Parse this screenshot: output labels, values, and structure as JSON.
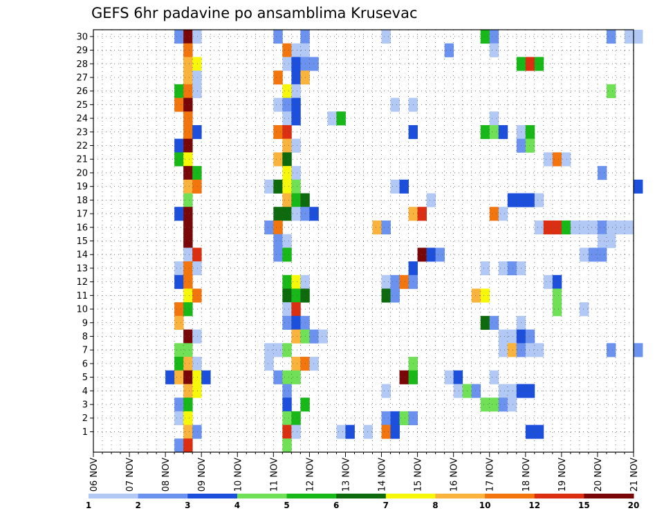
{
  "chart_data": {
    "type": "heatmap",
    "title": "GEFS 6hr padavine po ansamblima Krusevac",
    "xlabel": "",
    "ylabel": "",
    "x_tick_labels": [
      "06 NOV",
      "07 NOV",
      "08 NOV",
      "09 NOV",
      "10 NOV",
      "11 NOV",
      "12 NOV",
      "13 NOV",
      "14 NOV",
      "15 NOV",
      "16 NOV",
      "17 NOV",
      "18 NOV",
      "19 NOV",
      "20 NOV",
      "21 NOV"
    ],
    "x_range_days": [
      0,
      15
    ],
    "y_tick_labels": [
      "1",
      "2",
      "3",
      "4",
      "5",
      "6",
      "7",
      "8",
      "9",
      "10",
      "11",
      "12",
      "13",
      "14",
      "15",
      "16",
      "17",
      "18",
      "19",
      "20",
      "21",
      "22",
      "23",
      "24",
      "25",
      "26",
      "27",
      "28",
      "29",
      "30"
    ],
    "y_range": [
      0,
      30
    ],
    "grid": true,
    "colorbar": {
      "placement": "bottom",
      "labels": [
        "1",
        "2",
        "3",
        "4",
        "5",
        "6",
        "7",
        "8",
        "10",
        "12",
        "15",
        "20"
      ],
      "colors": [
        "#b3c9f5",
        "#6b92ee",
        "#1c4fdb",
        "#70e157",
        "#18b818",
        "#0d6b0d",
        "#f7f709",
        "#fab33c",
        "#f2750d",
        "#dc2e10",
        "#7a0707"
      ]
    },
    "cells_format": "[member, x_day_offset_from_06_NOV, color_class_index]",
    "cells": [
      [
        30,
        2.25,
        1
      ],
      [
        30,
        2.5,
        10
      ],
      [
        30,
        2.75,
        0
      ],
      [
        30,
        5,
        1
      ],
      [
        30,
        5.75,
        1
      ],
      [
        30,
        8,
        0
      ],
      [
        30,
        10.75,
        4
      ],
      [
        30,
        11,
        1
      ],
      [
        30,
        14.25,
        1
      ],
      [
        30,
        14.75,
        0
      ],
      [
        30,
        15,
        0
      ],
      [
        29,
        2.5,
        8
      ],
      [
        29,
        5.25,
        8
      ],
      [
        29,
        5.5,
        0
      ],
      [
        29,
        5.75,
        0
      ],
      [
        29,
        9.75,
        1
      ],
      [
        29,
        11,
        0
      ],
      [
        28,
        2.5,
        7
      ],
      [
        28,
        2.75,
        6
      ],
      [
        28,
        5.25,
        0
      ],
      [
        28,
        5.5,
        2
      ],
      [
        28,
        5.75,
        1
      ],
      [
        28,
        6,
        1
      ],
      [
        28,
        11.75,
        4
      ],
      [
        28,
        12,
        9
      ],
      [
        28,
        12.25,
        4
      ],
      [
        27,
        2.5,
        7
      ],
      [
        27,
        2.75,
        0
      ],
      [
        27,
        5,
        8
      ],
      [
        27,
        5.5,
        2
      ],
      [
        27,
        5.75,
        7
      ],
      [
        26,
        2.25,
        4
      ],
      [
        26,
        2.5,
        8
      ],
      [
        26,
        2.75,
        0
      ],
      [
        26,
        5.25,
        6
      ],
      [
        26,
        5.5,
        0
      ],
      [
        26,
        14.25,
        3
      ],
      [
        25,
        2.25,
        8
      ],
      [
        25,
        2.5,
        10
      ],
      [
        25,
        5,
        0
      ],
      [
        25,
        5.25,
        1
      ],
      [
        25,
        5.5,
        2
      ],
      [
        25,
        8.25,
        0
      ],
      [
        25,
        8.75,
        0
      ],
      [
        24,
        2.5,
        8
      ],
      [
        24,
        5.25,
        0
      ],
      [
        24,
        5.5,
        2
      ],
      [
        24,
        6.5,
        0
      ],
      [
        24,
        6.75,
        4
      ],
      [
        24,
        11,
        0
      ],
      [
        23,
        2.5,
        8
      ],
      [
        23,
        2.75,
        2
      ],
      [
        23,
        5,
        8
      ],
      [
        23,
        5.25,
        9
      ],
      [
        23,
        8.75,
        2
      ],
      [
        23,
        10.75,
        4
      ],
      [
        23,
        11,
        3
      ],
      [
        23,
        11.25,
        2
      ],
      [
        23,
        11.75,
        0
      ],
      [
        23,
        12,
        4
      ],
      [
        22,
        2.25,
        2
      ],
      [
        22,
        2.5,
        10
      ],
      [
        22,
        5.25,
        7
      ],
      [
        22,
        5.5,
        0
      ],
      [
        22,
        11.75,
        1
      ],
      [
        22,
        12,
        3
      ],
      [
        21,
        2.25,
        4
      ],
      [
        21,
        2.5,
        6
      ],
      [
        21,
        5,
        7
      ],
      [
        21,
        5.25,
        5
      ],
      [
        21,
        12.5,
        0
      ],
      [
        21,
        12.75,
        8
      ],
      [
        21,
        13,
        0
      ],
      [
        20,
        2.5,
        10
      ],
      [
        20,
        2.75,
        4
      ],
      [
        20,
        5.25,
        6
      ],
      [
        20,
        5.5,
        0
      ],
      [
        20,
        14,
        1
      ],
      [
        19,
        2.5,
        7
      ],
      [
        19,
        2.75,
        8
      ],
      [
        19,
        4.75,
        0
      ],
      [
        19,
        5,
        5
      ],
      [
        19,
        5.25,
        6
      ],
      [
        19,
        5.5,
        3
      ],
      [
        19,
        8.25,
        0
      ],
      [
        19,
        8.5,
        2
      ],
      [
        19,
        15,
        2
      ],
      [
        18,
        2.5,
        3
      ],
      [
        18,
        5.25,
        7
      ],
      [
        18,
        5.5,
        4
      ],
      [
        18,
        5.75,
        5
      ],
      [
        18,
        9.25,
        0
      ],
      [
        18,
        11.5,
        2
      ],
      [
        18,
        11.75,
        2
      ],
      [
        18,
        12,
        2
      ],
      [
        18,
        12.25,
        0
      ],
      [
        17,
        2.25,
        2
      ],
      [
        17,
        2.5,
        10
      ],
      [
        17,
        5,
        5
      ],
      [
        17,
        5.25,
        5
      ],
      [
        17,
        5.5,
        0
      ],
      [
        17,
        5.75,
        1
      ],
      [
        17,
        6,
        2
      ],
      [
        17,
        8.75,
        7
      ],
      [
        17,
        9,
        9
      ],
      [
        17,
        11,
        8
      ],
      [
        17,
        11.25,
        0
      ],
      [
        16,
        2.5,
        10
      ],
      [
        16,
        4.75,
        1
      ],
      [
        16,
        5,
        8
      ],
      [
        16,
        7.75,
        7
      ],
      [
        16,
        8,
        1
      ],
      [
        16,
        12.25,
        0
      ],
      [
        16,
        12.5,
        9
      ],
      [
        16,
        12.75,
        9
      ],
      [
        16,
        13,
        4
      ],
      [
        16,
        13.25,
        0
      ],
      [
        16,
        13.5,
        0
      ],
      [
        16,
        13.75,
        0
      ],
      [
        16,
        14,
        1
      ],
      [
        16,
        14.25,
        0
      ],
      [
        16,
        14.5,
        0
      ],
      [
        16,
        14.75,
        0
      ],
      [
        15,
        2.5,
        10
      ],
      [
        15,
        5,
        1
      ],
      [
        15,
        5.25,
        0
      ],
      [
        15,
        14,
        0
      ],
      [
        15,
        14.25,
        0
      ],
      [
        14,
        2.5,
        0
      ],
      [
        14,
        2.75,
        9
      ],
      [
        14,
        5,
        1
      ],
      [
        14,
        5.25,
        4
      ],
      [
        14,
        9,
        10
      ],
      [
        14,
        9.25,
        2
      ],
      [
        14,
        9.5,
        1
      ],
      [
        14,
        13.5,
        0
      ],
      [
        14,
        13.75,
        1
      ],
      [
        14,
        14,
        1
      ],
      [
        13,
        2.25,
        0
      ],
      [
        13,
        2.5,
        8
      ],
      [
        13,
        2.75,
        0
      ],
      [
        13,
        8.75,
        2
      ],
      [
        13,
        10.75,
        0
      ],
      [
        13,
        11.25,
        0
      ],
      [
        13,
        11.5,
        1
      ],
      [
        13,
        11.75,
        0
      ],
      [
        12,
        2.25,
        2
      ],
      [
        12,
        2.5,
        8
      ],
      [
        12,
        5.25,
        4
      ],
      [
        12,
        5.5,
        6
      ],
      [
        12,
        5.75,
        0
      ],
      [
        12,
        8,
        0
      ],
      [
        12,
        8.25,
        1
      ],
      [
        12,
        8.5,
        8
      ],
      [
        12,
        8.75,
        1
      ],
      [
        12,
        12.5,
        0
      ],
      [
        12,
        12.75,
        2
      ],
      [
        11,
        2.5,
        6
      ],
      [
        11,
        2.75,
        8
      ],
      [
        11,
        5.25,
        5
      ],
      [
        11,
        5.5,
        4
      ],
      [
        11,
        5.75,
        5
      ],
      [
        11,
        8,
        5
      ],
      [
        11,
        8.25,
        1
      ],
      [
        11,
        10.5,
        7
      ],
      [
        11,
        10.75,
        6
      ],
      [
        11,
        12.75,
        3
      ],
      [
        10,
        2.25,
        8
      ],
      [
        10,
        2.5,
        4
      ],
      [
        10,
        5.25,
        0
      ],
      [
        10,
        5.5,
        9
      ],
      [
        10,
        12.75,
        3
      ],
      [
        10,
        13.5,
        0
      ],
      [
        9,
        2.25,
        7
      ],
      [
        9,
        5.25,
        1
      ],
      [
        9,
        5.5,
        2
      ],
      [
        9,
        5.75,
        1
      ],
      [
        9,
        10.75,
        5
      ],
      [
        9,
        11,
        1
      ],
      [
        9,
        11.75,
        0
      ],
      [
        8,
        2.5,
        10
      ],
      [
        8,
        2.75,
        0
      ],
      [
        8,
        5.5,
        7
      ],
      [
        8,
        5.75,
        3
      ],
      [
        8,
        6,
        1
      ],
      [
        8,
        6.25,
        0
      ],
      [
        8,
        11.25,
        0
      ],
      [
        8,
        11.5,
        0
      ],
      [
        8,
        11.75,
        2
      ],
      [
        8,
        12,
        1
      ],
      [
        7,
        2.25,
        3
      ],
      [
        7,
        2.5,
        3
      ],
      [
        7,
        4.75,
        0
      ],
      [
        7,
        5,
        0
      ],
      [
        7,
        5.25,
        3
      ],
      [
        7,
        11.25,
        0
      ],
      [
        7,
        11.5,
        7
      ],
      [
        7,
        11.75,
        1
      ],
      [
        7,
        12,
        0
      ],
      [
        7,
        12.25,
        0
      ],
      [
        7,
        14.25,
        1
      ],
      [
        7,
        15,
        1
      ],
      [
        6,
        2.25,
        4
      ],
      [
        6,
        2.5,
        7
      ],
      [
        6,
        2.75,
        0
      ],
      [
        6,
        4.75,
        0
      ],
      [
        6,
        5.5,
        7
      ],
      [
        6,
        5.75,
        8
      ],
      [
        6,
        6,
        0
      ],
      [
        6,
        8.75,
        3
      ],
      [
        5,
        2,
        2
      ],
      [
        5,
        2.25,
        7
      ],
      [
        5,
        2.5,
        10
      ],
      [
        5,
        2.75,
        6
      ],
      [
        5,
        3,
        2
      ],
      [
        5,
        5,
        1
      ],
      [
        5,
        5.25,
        3
      ],
      [
        5,
        5.5,
        3
      ],
      [
        5,
        8.5,
        10
      ],
      [
        5,
        8.75,
        4
      ],
      [
        5,
        9.75,
        0
      ],
      [
        5,
        10,
        2
      ],
      [
        5,
        11,
        0
      ],
      [
        4,
        2.5,
        7
      ],
      [
        4,
        2.75,
        6
      ],
      [
        4,
        5.25,
        1
      ],
      [
        4,
        8,
        0
      ],
      [
        4,
        10,
        0
      ],
      [
        4,
        10.25,
        3
      ],
      [
        4,
        10.5,
        1
      ],
      [
        4,
        11.25,
        0
      ],
      [
        4,
        11.5,
        0
      ],
      [
        4,
        11.75,
        2
      ],
      [
        4,
        12,
        2
      ],
      [
        3,
        2.25,
        1
      ],
      [
        3,
        2.5,
        4
      ],
      [
        3,
        5.25,
        2
      ],
      [
        3,
        5.75,
        4
      ],
      [
        3,
        10.75,
        3
      ],
      [
        3,
        11,
        3
      ],
      [
        3,
        11.25,
        1
      ],
      [
        3,
        11.5,
        0
      ],
      [
        2,
        2.25,
        0
      ],
      [
        2,
        2.5,
        6
      ],
      [
        2,
        5.25,
        3
      ],
      [
        2,
        5.5,
        4
      ],
      [
        2,
        8,
        1
      ],
      [
        2,
        8.25,
        2
      ],
      [
        2,
        8.5,
        3
      ],
      [
        2,
        8.75,
        1
      ],
      [
        1,
        2.5,
        7
      ],
      [
        1,
        2.75,
        1
      ],
      [
        1,
        5.25,
        9
      ],
      [
        1,
        5.5,
        0
      ],
      [
        1,
        6.75,
        0
      ],
      [
        1,
        7,
        2
      ],
      [
        1,
        7.5,
        0
      ],
      [
        1,
        8,
        8
      ],
      [
        1,
        8.25,
        2
      ],
      [
        1,
        12,
        2
      ],
      [
        1,
        12.25,
        2
      ],
      [
        0,
        2.25,
        1
      ],
      [
        0,
        2.5,
        9
      ],
      [
        0,
        5.25,
        3
      ]
    ]
  }
}
